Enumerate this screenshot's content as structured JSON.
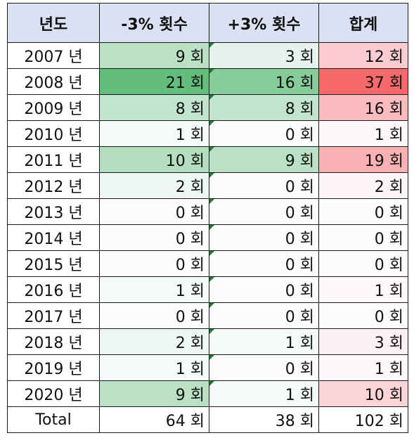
{
  "table": {
    "headers": [
      "년도",
      "-3% 횟수",
      "+3% 횟수",
      "합계"
    ],
    "rows": [
      {
        "year": "2007 년",
        "minus": "9 회",
        "plus": "3 회",
        "total": "12 회"
      },
      {
        "year": "2008 년",
        "minus": "21 회",
        "plus": "16 회",
        "total": "37 회"
      },
      {
        "year": "2009 년",
        "minus": "8 회",
        "plus": "8 회",
        "total": "16 회"
      },
      {
        "year": "2010 년",
        "minus": "1 회",
        "plus": "0 회",
        "total": "1 회"
      },
      {
        "year": "2011 년",
        "minus": "10 회",
        "plus": "9 회",
        "total": "19 회"
      },
      {
        "year": "2012 년",
        "minus": "2 회",
        "plus": "0 회",
        "total": "2 회"
      },
      {
        "year": "2013 년",
        "minus": "0 회",
        "plus": "0 회",
        "total": "0 회"
      },
      {
        "year": "2014 년",
        "minus": "0 회",
        "plus": "0 회",
        "total": "0 회"
      },
      {
        "year": "2015 년",
        "minus": "0 회",
        "plus": "0 회",
        "total": "0 회"
      },
      {
        "year": "2016 년",
        "minus": "1 회",
        "plus": "0 회",
        "total": "1 회"
      },
      {
        "year": "2017 년",
        "minus": "0 회",
        "plus": "0 회",
        "total": "0 회"
      },
      {
        "year": "2018 년",
        "minus": "2 회",
        "plus": "1 회",
        "total": "3 회"
      },
      {
        "year": "2019 년",
        "minus": "1 회",
        "plus": "0 회",
        "total": "1 회"
      },
      {
        "year": "2020 년",
        "minus": "9 회",
        "plus": "1 회",
        "total": "10 회"
      }
    ],
    "total_row": {
      "label": "Total",
      "minus": "64 회",
      "plus": "38 회",
      "total": "102 회"
    }
  },
  "colors": {
    "header_bg": "#d9e1f2",
    "green_max": "#63be7b",
    "red_max": "#f8696b",
    "scale_min": "#fcfcff",
    "error_flag": "#1e7a34"
  }
}
